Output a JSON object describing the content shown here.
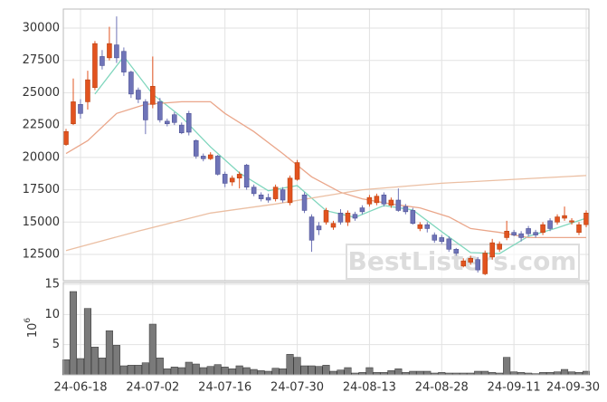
{
  "chart_data": [
    {
      "type": "candlestick",
      "ylim": [
        10470,
        31470
      ],
      "yticks": [
        12500,
        15000,
        17500,
        20000,
        22500,
        25000,
        27500,
        30000
      ],
      "grid": true,
      "up_color": "#e2531f",
      "down_color": "#6f74b8",
      "open": [
        21000,
        22600,
        24100,
        24300,
        25400,
        27800,
        27700,
        28700,
        28200,
        26600,
        25200,
        24300,
        24100,
        24300,
        22800,
        23300,
        22500,
        23400,
        21300,
        20100,
        19900,
        20100,
        18700,
        18100,
        18400,
        19400,
        17700,
        17100,
        16900,
        16800,
        17500,
        16500,
        18300,
        17100,
        15400,
        14700,
        15000,
        14600,
        15700,
        15000,
        15600,
        16100,
        16400,
        16500,
        17100,
        16300,
        16700,
        16200,
        15900,
        14500,
        14800,
        14000,
        13800,
        13700,
        12900,
        11600,
        11900,
        12100,
        11000,
        12300,
        12900,
        13800,
        14200,
        14100,
        14500,
        14200,
        14200,
        15100,
        15000,
        15300,
        15000,
        14200,
        14800
      ],
      "high": [
        22200,
        26100,
        24500,
        26700,
        29000,
        28300,
        30100,
        30900,
        28500,
        26700,
        25400,
        24500,
        27800,
        24600,
        23000,
        23500,
        22700,
        23600,
        21400,
        20300,
        20400,
        20200,
        18900,
        18600,
        18900,
        19500,
        17900,
        17300,
        17200,
        17900,
        17700,
        18600,
        19800,
        17300,
        15600,
        15000,
        16100,
        15100,
        16000,
        15900,
        15800,
        16300,
        17100,
        17200,
        17300,
        16900,
        17600,
        16400,
        16100,
        15000,
        15000,
        14200,
        14000,
        13900,
        13000,
        12200,
        12400,
        12300,
        12800,
        13700,
        13500,
        15100,
        14400,
        14300,
        14700,
        14400,
        15000,
        15300,
        15600,
        16200,
        15300,
        15000,
        15900
      ],
      "low": [
        20900,
        22500,
        23000,
        23700,
        25200,
        26800,
        27500,
        27300,
        26300,
        24600,
        24200,
        21800,
        23800,
        22700,
        22400,
        22500,
        21800,
        21700,
        19900,
        19700,
        19800,
        18600,
        17700,
        17800,
        17600,
        17500,
        17000,
        16600,
        16500,
        16600,
        16500,
        16300,
        18200,
        15700,
        12700,
        14000,
        14800,
        14400,
        14800,
        14700,
        15100,
        15600,
        16200,
        16300,
        16200,
        16100,
        15800,
        15600,
        14800,
        14300,
        14200,
        13400,
        13300,
        12700,
        12400,
        11500,
        11700,
        11100,
        10900,
        12100,
        12700,
        13600,
        13900,
        13500,
        13900,
        13800,
        14000,
        14300,
        14800,
        15100,
        14800,
        14000,
        14600
      ],
      "close": [
        22000,
        24300,
        23400,
        26000,
        28800,
        27100,
        28800,
        27700,
        26600,
        24900,
        24500,
        22900,
        25500,
        22900,
        22600,
        22700,
        21900,
        21950,
        20100,
        19900,
        20200,
        18700,
        18000,
        18400,
        18700,
        17700,
        17200,
        16800,
        16700,
        17700,
        16700,
        18400,
        19600,
        15900,
        13600,
        14400,
        15900,
        14900,
        15000,
        15700,
        15300,
        15800,
        16900,
        17000,
        16400,
        16700,
        15900,
        15800,
        14900,
        14800,
        14500,
        13600,
        13500,
        12900,
        12600,
        12000,
        12200,
        11300,
        12600,
        13400,
        13300,
        14300,
        14000,
        13800,
        14100,
        14000,
        14800,
        14500,
        15400,
        15500,
        15100,
        14800,
        15700
      ],
      "lines": [
        {
          "color": "#7fd6bd",
          "x": [
            4,
            8,
            12,
            16,
            20,
            24,
            28,
            32,
            36,
            40,
            44,
            48,
            52,
            56,
            60,
            64,
            68,
            72
          ],
          "values": [
            24900,
            27800,
            24880,
            23120,
            20810,
            18800,
            17420,
            17820,
            15880,
            15360,
            16280,
            15940,
            14260,
            12640,
            12560,
            13900,
            14560,
            15300
          ]
        },
        {
          "color": "#eaa68a",
          "x": [
            0,
            3,
            7,
            11,
            16,
            20,
            22,
            26,
            30,
            34,
            38,
            41,
            45,
            49,
            53,
            56,
            60,
            64,
            68,
            72
          ],
          "values": [
            20300,
            21300,
            23400,
            24100,
            24300,
            24300,
            23400,
            22000,
            20300,
            18500,
            17300,
            16800,
            16400,
            16100,
            15400,
            14500,
            14200,
            13800,
            13800,
            13800
          ]
        },
        {
          "color": "#ebbfa3",
          "x": [
            0,
            10,
            20,
            29,
            41,
            52,
            62,
            72
          ],
          "values": [
            12800,
            14300,
            15700,
            16400,
            17500,
            18000,
            18300,
            18600
          ]
        }
      ]
    },
    {
      "type": "bar",
      "ylim": [
        0,
        15.3
      ],
      "yticks": [
        5,
        10,
        15
      ],
      "grid": true,
      "color": "#7a7a7a",
      "ylabel": {
        "base": "10",
        "exponent": "6"
      },
      "categories": [
        null,
        null,
        "24-06-18",
        null,
        null,
        null,
        null,
        null,
        null,
        null,
        null,
        null,
        "24-07-02",
        null,
        null,
        null,
        null,
        null,
        null,
        null,
        null,
        null,
        "24-07-16",
        null,
        null,
        null,
        null,
        null,
        null,
        null,
        null,
        null,
        "24-07-30",
        null,
        null,
        null,
        null,
        null,
        null,
        null,
        null,
        null,
        "24-08-13",
        null,
        null,
        null,
        null,
        null,
        null,
        null,
        null,
        null,
        "24-08-28",
        null,
        null,
        null,
        null,
        null,
        null,
        null,
        null,
        null,
        "24-09-11",
        null,
        null,
        null,
        null,
        null,
        null,
        null,
        null,
        null,
        "24-09-30"
      ],
      "values": [
        2.5,
        13.8,
        2.7,
        11.0,
        4.6,
        2.8,
        7.3,
        4.9,
        1.5,
        1.6,
        1.6,
        2.0,
        8.4,
        2.8,
        1.0,
        1.3,
        1.2,
        2.1,
        1.8,
        1.2,
        1.4,
        1.7,
        1.3,
        1.0,
        1.5,
        1.2,
        0.9,
        0.7,
        0.6,
        1.1,
        1.0,
        3.4,
        2.9,
        1.5,
        1.5,
        1.4,
        1.6,
        0.6,
        0.8,
        1.2,
        0.3,
        0.4,
        1.2,
        0.4,
        0.4,
        0.7,
        1.0,
        0.4,
        0.6,
        0.6,
        0.6,
        0.3,
        0.4,
        0.3,
        0.3,
        0.3,
        0.3,
        0.6,
        0.6,
        0.4,
        0.3,
        2.9,
        0.5,
        0.4,
        0.3,
        0.2,
        0.4,
        0.4,
        0.5,
        0.9,
        0.5,
        0.4,
        0.6
      ]
    }
  ],
  "watermark": "BestListers.com"
}
